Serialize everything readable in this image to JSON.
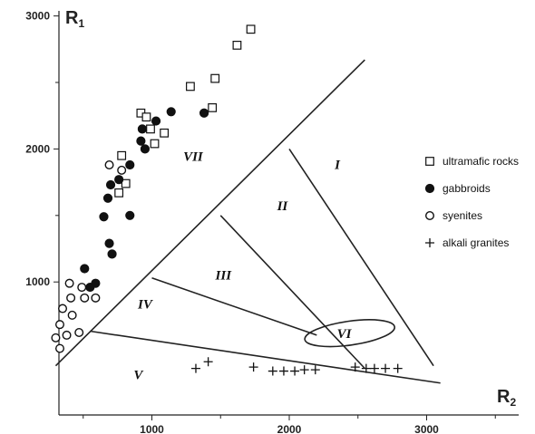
{
  "chart_data": {
    "type": "scatter",
    "title": "",
    "xlabel": {
      "main": "R",
      "sub": "2"
    },
    "ylabel": {
      "main": "R",
      "sub": "1"
    },
    "xlim": [
      0,
      3500
    ],
    "ylim": [
      0,
      3150
    ],
    "x_ticks": [
      {
        "value": 1000,
        "label": "1000"
      },
      {
        "value": 2000,
        "label": "2000"
      },
      {
        "value": 3000,
        "label": "3000"
      }
    ],
    "x_minor_ticks": [
      500,
      1500,
      2500,
      3500
    ],
    "y_ticks": [
      {
        "value": 1000,
        "label": "1000"
      },
      {
        "value": 2000,
        "label": "2000"
      },
      {
        "value": 3000,
        "label": "3000"
      }
    ],
    "y_minor_ticks": [
      500,
      1500,
      2500
    ],
    "grid": false,
    "legend_position": "right",
    "fields": [
      {
        "label": "I",
        "x": 2350,
        "y": 1850
      },
      {
        "label": "II",
        "x": 1950,
        "y": 1540
      },
      {
        "label": "III",
        "x": 1520,
        "y": 1020
      },
      {
        "label": "IV",
        "x": 950,
        "y": 800
      },
      {
        "label": "V",
        "x": 900,
        "y": 270
      },
      {
        "label": "VI",
        "x": 2400,
        "y": 580
      },
      {
        "label": "VII",
        "x": 1300,
        "y": 1910
      }
    ],
    "boundary_lines": [
      {
        "name": "outer-left-boundary",
        "points": [
          [
            300,
            370
          ],
          [
            2550,
            2670
          ]
        ]
      },
      {
        "name": "base-boundary",
        "points": [
          [
            550,
            630
          ],
          [
            3100,
            240
          ]
        ]
      },
      {
        "name": "right-boundary",
        "points": [
          [
            2000,
            2000
          ],
          [
            3050,
            370
          ]
        ]
      },
      {
        "name": "field-I-II-boundary",
        "points": [
          [
            1500,
            1500
          ],
          [
            2550,
            350
          ]
        ]
      },
      {
        "name": "field-II-III-boundary",
        "points": [
          [
            1000,
            1030
          ],
          [
            2200,
            600
          ]
        ]
      }
    ],
    "ellipse": {
      "name": "field-VI-ellipse",
      "cx": 2440,
      "cy": 615,
      "rx": 330,
      "ry": 90,
      "rotation_deg": -8
    },
    "series": [
      {
        "name": "ultramafic rocks",
        "marker": "open-square",
        "points": [
          [
            1620,
            2780
          ],
          [
            1720,
            2900
          ],
          [
            1280,
            2470
          ],
          [
            1460,
            2530
          ],
          [
            1440,
            2310
          ],
          [
            920,
            2270
          ],
          [
            960,
            2240
          ],
          [
            990,
            2150
          ],
          [
            1020,
            2040
          ],
          [
            1090,
            2120
          ],
          [
            780,
            1950
          ],
          [
            810,
            1740
          ],
          [
            760,
            1670
          ]
        ]
      },
      {
        "name": "gabbroids",
        "marker": "filled-circle",
        "points": [
          [
            1140,
            2280
          ],
          [
            1380,
            2270
          ],
          [
            1030,
            2210
          ],
          [
            930,
            2150
          ],
          [
            920,
            2060
          ],
          [
            950,
            2000
          ],
          [
            840,
            1880
          ],
          [
            760,
            1770
          ],
          [
            700,
            1730
          ],
          [
            680,
            1630
          ],
          [
            650,
            1490
          ],
          [
            840,
            1500
          ],
          [
            690,
            1290
          ],
          [
            710,
            1210
          ],
          [
            510,
            1100
          ],
          [
            590,
            990
          ],
          [
            550,
            960
          ]
        ]
      },
      {
        "name": "syenites",
        "marker": "open-circle",
        "points": [
          [
            690,
            1880
          ],
          [
            780,
            1840
          ],
          [
            400,
            990
          ],
          [
            490,
            960
          ],
          [
            510,
            880
          ],
          [
            410,
            880
          ],
          [
            590,
            880
          ],
          [
            350,
            800
          ],
          [
            420,
            750
          ],
          [
            330,
            680
          ],
          [
            380,
            600
          ],
          [
            300,
            580
          ],
          [
            330,
            500
          ],
          [
            470,
            620
          ]
        ]
      },
      {
        "name": "alkali granites",
        "marker": "plus",
        "points": [
          [
            1320,
            350
          ],
          [
            1410,
            400
          ],
          [
            1740,
            360
          ],
          [
            1880,
            330
          ],
          [
            1960,
            330
          ],
          [
            2040,
            330
          ],
          [
            2110,
            340
          ],
          [
            2190,
            340
          ],
          [
            2480,
            360
          ],
          [
            2560,
            350
          ],
          [
            2620,
            350
          ],
          [
            2700,
            350
          ],
          [
            2790,
            350
          ]
        ]
      }
    ]
  }
}
